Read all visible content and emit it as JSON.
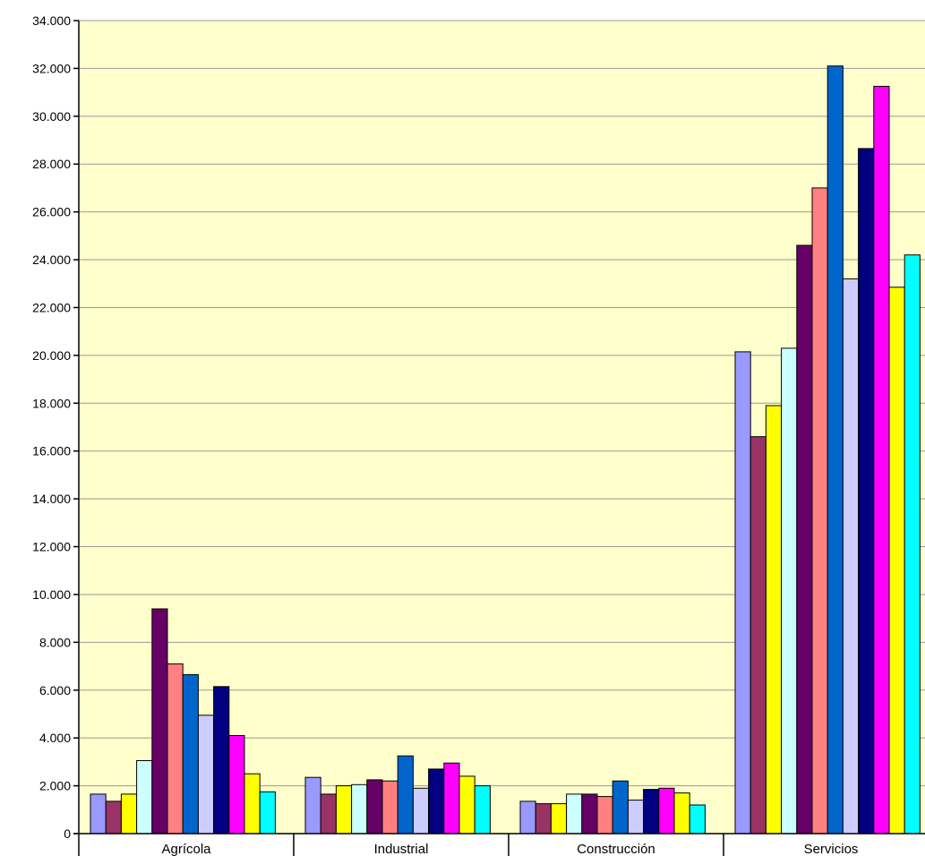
{
  "chart_data": {
    "type": "bar",
    "categories": [
      "Agrícola",
      "Industrial",
      "Construcción",
      "Servicios"
    ],
    "ylim": [
      0,
      34000
    ],
    "ytick_values": [
      0,
      2000,
      4000,
      6000,
      8000,
      10000,
      12000,
      14000,
      16000,
      18000,
      20000,
      22000,
      24000,
      26000,
      28000,
      30000,
      32000,
      34000
    ],
    "ytick_labels": [
      "0",
      "2.000",
      "4.000",
      "6.000",
      "8.000",
      "10.000",
      "12.000",
      "14.000",
      "16.000",
      "18.000",
      "20.000",
      "22.000",
      "24.000",
      "26.000",
      "28.000",
      "30.000",
      "32.000",
      "34.000"
    ],
    "grid": true,
    "legend": "none",
    "plot_background": "#FFFFCC",
    "series": [
      {
        "color": "#9999FF",
        "values": [
          1650,
          2350,
          1350,
          20150
        ]
      },
      {
        "color": "#993366",
        "values": [
          1350,
          1650,
          1250,
          16600
        ]
      },
      {
        "color": "#FFFF00",
        "values": [
          1650,
          2000,
          1250,
          17900
        ]
      },
      {
        "color": "#CCFFFF",
        "values": [
          3050,
          2050,
          1650,
          20300
        ]
      },
      {
        "color": "#660066",
        "values": [
          9400,
          2250,
          1650,
          24600
        ]
      },
      {
        "color": "#FF8080",
        "values": [
          7100,
          2200,
          1550,
          27000
        ]
      },
      {
        "color": "#0066CC",
        "values": [
          6650,
          3250,
          2200,
          32100
        ]
      },
      {
        "color": "#CCCCFF",
        "values": [
          4950,
          1900,
          1400,
          23200
        ]
      },
      {
        "color": "#000080",
        "values": [
          6150,
          2700,
          1850,
          28650
        ]
      },
      {
        "color": "#FF00FF",
        "values": [
          4100,
          2950,
          1900,
          31250
        ]
      },
      {
        "color": "#FFFF00",
        "values": [
          2500,
          2400,
          1700,
          22850
        ]
      },
      {
        "color": "#00FFFF",
        "values": [
          1750,
          2000,
          1200,
          24200
        ]
      }
    ]
  }
}
